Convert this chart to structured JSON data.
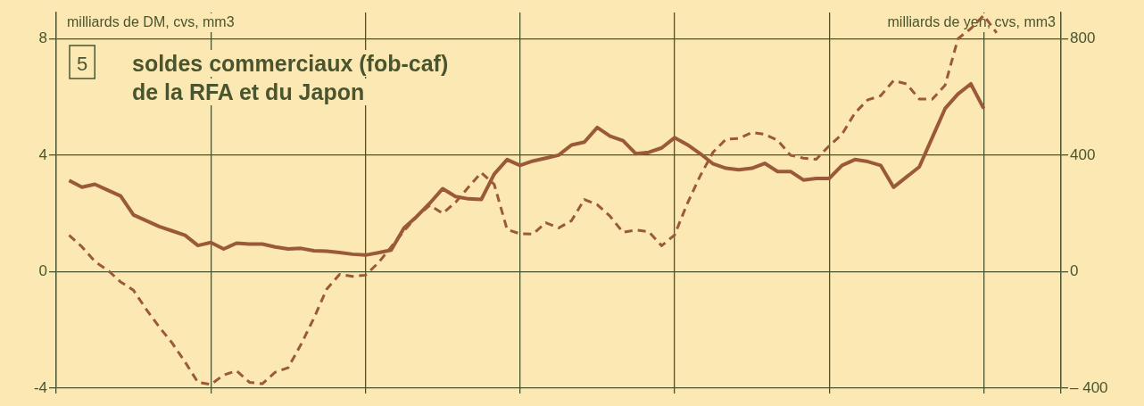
{
  "chart_data": {
    "type": "line",
    "title": "soldes commerciaux (fob-caf)\nde la RFA et du Japon",
    "annotations": [
      "5"
    ],
    "ylabel": "milliards de DM, cvs, mm3",
    "y2label": "milliards de yen, cvs, mm3",
    "categories": [
      null,
      null,
      null,
      null,
      null,
      null,
      null,
      null,
      null,
      null,
      null,
      null,
      null,
      null,
      null,
      null,
      null,
      null,
      null,
      null,
      null,
      null,
      null,
      null,
      null,
      null,
      null,
      null,
      null,
      null,
      null,
      null,
      null,
      null,
      null,
      null,
      null,
      null,
      null,
      null,
      null,
      null,
      null,
      null,
      null,
      null,
      null,
      null,
      null,
      null,
      null,
      null,
      null,
      null,
      null,
      null,
      null,
      null,
      null,
      null,
      null,
      null,
      null,
      null,
      null,
      null,
      null,
      null,
      null,
      null,
      null,
      null,
      null,
      null,
      null,
      null,
      null,
      null,
      null
    ],
    "series": [
      {
        "color": "#9a5a3a",
        "line_style": "solid",
        "values": [
          null,
          3.13,
          2.9,
          3.0,
          2.8,
          2.6,
          1.95,
          1.75,
          1.55,
          1.4,
          1.25,
          0.9,
          1.0,
          0.78,
          0.98,
          0.95,
          0.95,
          0.85,
          0.78,
          0.8,
          0.72,
          0.7,
          0.66,
          0.6,
          0.57,
          0.65,
          0.74,
          1.5,
          1.9,
          2.35,
          2.85,
          2.58,
          2.5,
          2.48,
          3.35,
          3.85,
          3.65,
          3.8,
          3.9,
          4.0,
          4.35,
          4.45,
          4.95,
          4.65,
          4.5,
          4.05,
          4.1,
          4.25,
          4.6,
          4.36,
          4.05,
          3.7,
          3.55,
          3.5,
          3.55,
          3.72,
          3.44,
          3.44,
          3.15,
          3.2,
          3.2,
          3.65,
          3.85,
          3.78,
          3.65,
          2.9,
          3.25,
          3.6,
          4.6,
          5.6,
          6.1,
          6.45,
          5.6,
          null,
          null,
          null,
          null,
          null,
          null
        ]
      },
      {
        "color": "#9a5a3a",
        "line_style": "dashed",
        "axis": "y2",
        "values": [
          null,
          125,
          85,
          35,
          5,
          -35,
          -64,
          -130,
          -190,
          -245,
          -310,
          -380,
          -387,
          -355,
          -340,
          -380,
          -385,
          -345,
          -330,
          -250,
          -160,
          -60,
          -9,
          -16,
          -12,
          30,
          85,
          140,
          190,
          228,
          200,
          238,
          290,
          340,
          300,
          145,
          130,
          129,
          168,
          150,
          175,
          248,
          230,
          190,
          135,
          143,
          137,
          89,
          126,
          235,
          330,
          411,
          455,
          457,
          478,
          472,
          451,
          400,
          390,
          386,
          432,
          472,
          545,
          590,
          604,
          656,
          645,
          593,
          592,
          640,
          800,
          835,
          880,
          820,
          null,
          null,
          null,
          null,
          null
        ]
      }
    ],
    "ylim": [
      -4,
      8.9
    ],
    "yticks": [
      -4,
      0,
      4,
      8
    ],
    "y2lim": [
      -400,
      890
    ],
    "y2ticks": [
      {
        "value": -400,
        "label": "– 400"
      },
      0,
      400,
      800
    ],
    "grid": true,
    "legend": false,
    "marker": "none"
  }
}
